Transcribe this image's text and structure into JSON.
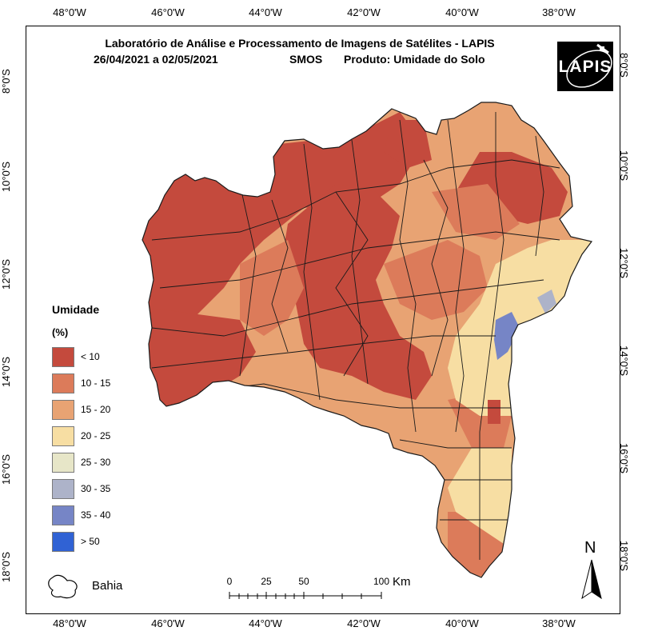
{
  "title": {
    "line1": "Laboratório de Análise e Processamento de Imagens de Satélites - LAPIS",
    "period": "26/04/2021  a  02/05/2021",
    "sensor": "SMOS",
    "product": "Produto: Umidade do Solo"
  },
  "logo": {
    "text": "LAPIS"
  },
  "axes": {
    "longitude_ticks": [
      "48°0'W",
      "46°0'W",
      "44°0'W",
      "42°0'W",
      "40°0'W",
      "38°0'W"
    ],
    "latitude_ticks": [
      "8°0'S",
      "10°0'S",
      "12°0'S",
      "14°0'S",
      "16°0'S",
      "18°0'S"
    ]
  },
  "legend": {
    "title": "Umidade",
    "unit": "(%)",
    "items": [
      {
        "label": "< 10",
        "color": "#c44a3d"
      },
      {
        "label": "10 - 15",
        "color": "#dc7b5a"
      },
      {
        "label": "15 - 20",
        "color": "#e8a373"
      },
      {
        "label": "20 - 25",
        "color": "#f7dea3"
      },
      {
        "label": "25 - 30",
        "color": "#e7e6c8"
      },
      {
        "label": "30 - 35",
        "color": "#adb3c9"
      },
      {
        "label": "35 - 40",
        "color": "#7685c6"
      },
      {
        "label": "> 50",
        "color": "#3062d4"
      }
    ]
  },
  "inset": {
    "label": "Bahia"
  },
  "scale_bar": {
    "labels": [
      "0",
      "25",
      "50",
      "100"
    ],
    "unit": "Km"
  },
  "north_arrow": {
    "letter": "N"
  },
  "colors": {
    "frame": "#000000",
    "boundary": "#1a1a1a"
  }
}
